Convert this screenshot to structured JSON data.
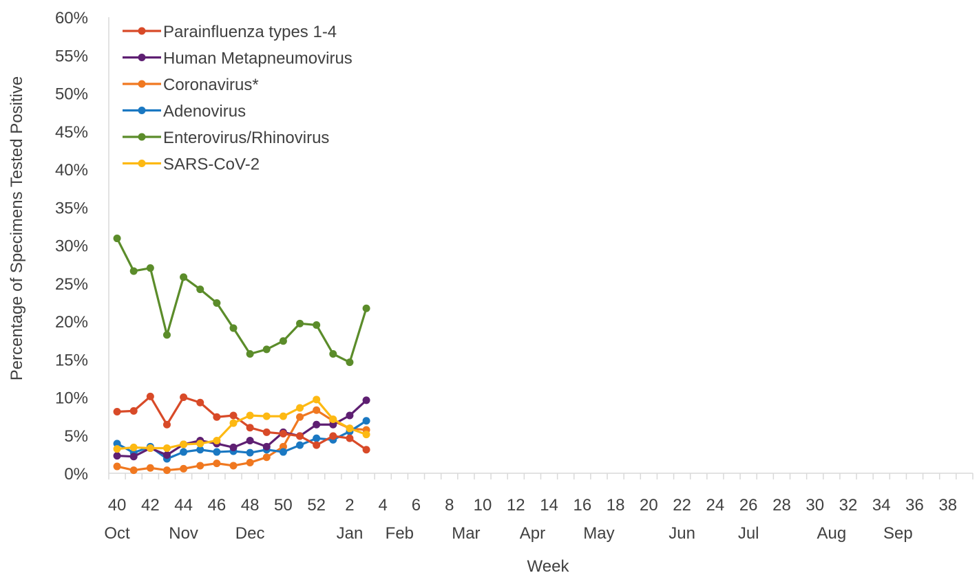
{
  "chart_data": {
    "type": "line",
    "title": "",
    "xlabel": "Week",
    "ylabel": "Percentage of Specimens Tested Positive",
    "ylim": [
      0,
      60
    ],
    "yticks": [
      "0%",
      "5%",
      "10%",
      "15%",
      "20%",
      "25%",
      "30%",
      "35%",
      "40%",
      "45%",
      "50%",
      "55%",
      "60%"
    ],
    "week_ticks": [
      "40",
      "42",
      "44",
      "46",
      "48",
      "50",
      "52",
      "2",
      "4",
      "6",
      "8",
      "10",
      "12",
      "14",
      "16",
      "18",
      "20",
      "22",
      "24",
      "26",
      "28",
      "30",
      "32",
      "34",
      "36",
      "38"
    ],
    "month_labels": [
      "Oct",
      "Nov",
      "Dec",
      "Jan",
      "Feb",
      "Mar",
      "Apr",
      "May",
      "Jun",
      "Jul",
      "Aug",
      "Sep"
    ],
    "weeks": [
      "40",
      "41",
      "42",
      "43",
      "44",
      "45",
      "46",
      "47",
      "48",
      "49",
      "50",
      "51",
      "52",
      "1",
      "2",
      "3"
    ],
    "legend_position": "top-left",
    "grid": false,
    "series": [
      {
        "name": "Parainfluenza types 1-4",
        "color": "#D84A28",
        "values": [
          8.1,
          8.2,
          10.1,
          6.4,
          10.0,
          9.3,
          7.4,
          7.6,
          6.0,
          5.4,
          5.2,
          4.9,
          3.7,
          4.9,
          4.6,
          3.1
        ]
      },
      {
        "name": "Human Metapneumovirus",
        "color": "#5E1F72",
        "values": [
          2.3,
          2.2,
          3.3,
          2.4,
          3.8,
          4.3,
          3.9,
          3.4,
          4.3,
          3.5,
          5.4,
          4.9,
          6.4,
          6.4,
          7.6,
          9.6
        ]
      },
      {
        "name": "Coronavirus*",
        "color": "#F07820",
        "values": [
          0.9,
          0.4,
          0.7,
          0.4,
          0.6,
          1.0,
          1.3,
          1.0,
          1.4,
          2.1,
          3.5,
          7.4,
          8.3,
          6.9,
          5.9,
          5.7
        ]
      },
      {
        "name": "Adenovirus",
        "color": "#1A78C2",
        "values": [
          3.9,
          2.7,
          3.5,
          1.9,
          2.8,
          3.1,
          2.8,
          2.9,
          2.7,
          3.1,
          2.8,
          3.7,
          4.6,
          4.4,
          5.5,
          6.9
        ]
      },
      {
        "name": "Enterovirus/Rhinovirus",
        "color": "#5B8C2A",
        "values": [
          30.9,
          26.6,
          27.0,
          18.2,
          25.8,
          24.2,
          22.4,
          19.1,
          15.7,
          16.3,
          17.4,
          19.7,
          19.5,
          15.7,
          14.6,
          21.7
        ]
      },
      {
        "name": "SARS-CoV-2",
        "color": "#FDB913",
        "values": [
          3.2,
          3.4,
          3.3,
          3.3,
          3.8,
          3.9,
          4.3,
          6.6,
          7.6,
          7.5,
          7.5,
          8.6,
          9.7,
          7.1,
          5.9,
          5.1
        ]
      }
    ]
  }
}
